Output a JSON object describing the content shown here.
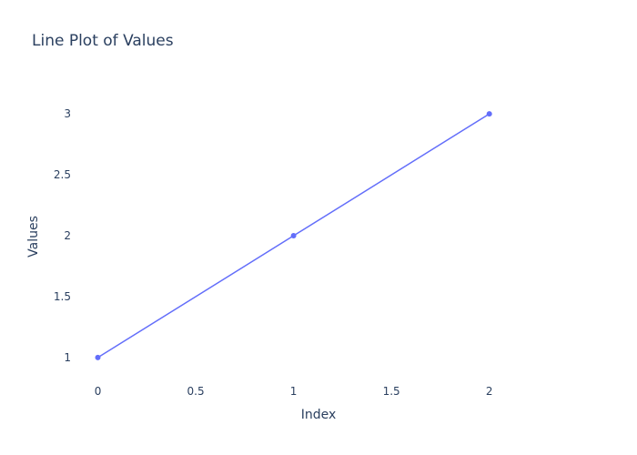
{
  "chart_data": {
    "type": "line",
    "title": "Line Plot of Values",
    "xlabel": "Index",
    "ylabel": "Values",
    "xlim": [
      -0.1,
      2.35
    ],
    "ylim": [
      0.85,
      3.3
    ],
    "x_ticks": [
      0,
      0.5,
      1,
      1.5,
      2
    ],
    "x_tick_labels": [
      "0",
      "0.5",
      "1",
      "1.5",
      "2"
    ],
    "y_ticks": [
      1,
      1.5,
      2,
      2.5,
      3
    ],
    "y_tick_labels": [
      "1",
      "1.5",
      "2",
      "2.5",
      "3"
    ],
    "grid": false,
    "legend": false,
    "series": [
      {
        "x": [
          0,
          1,
          2
        ],
        "y": [
          1,
          2,
          3
        ],
        "color": "#636efa",
        "mode": "lines+markers"
      }
    ]
  }
}
